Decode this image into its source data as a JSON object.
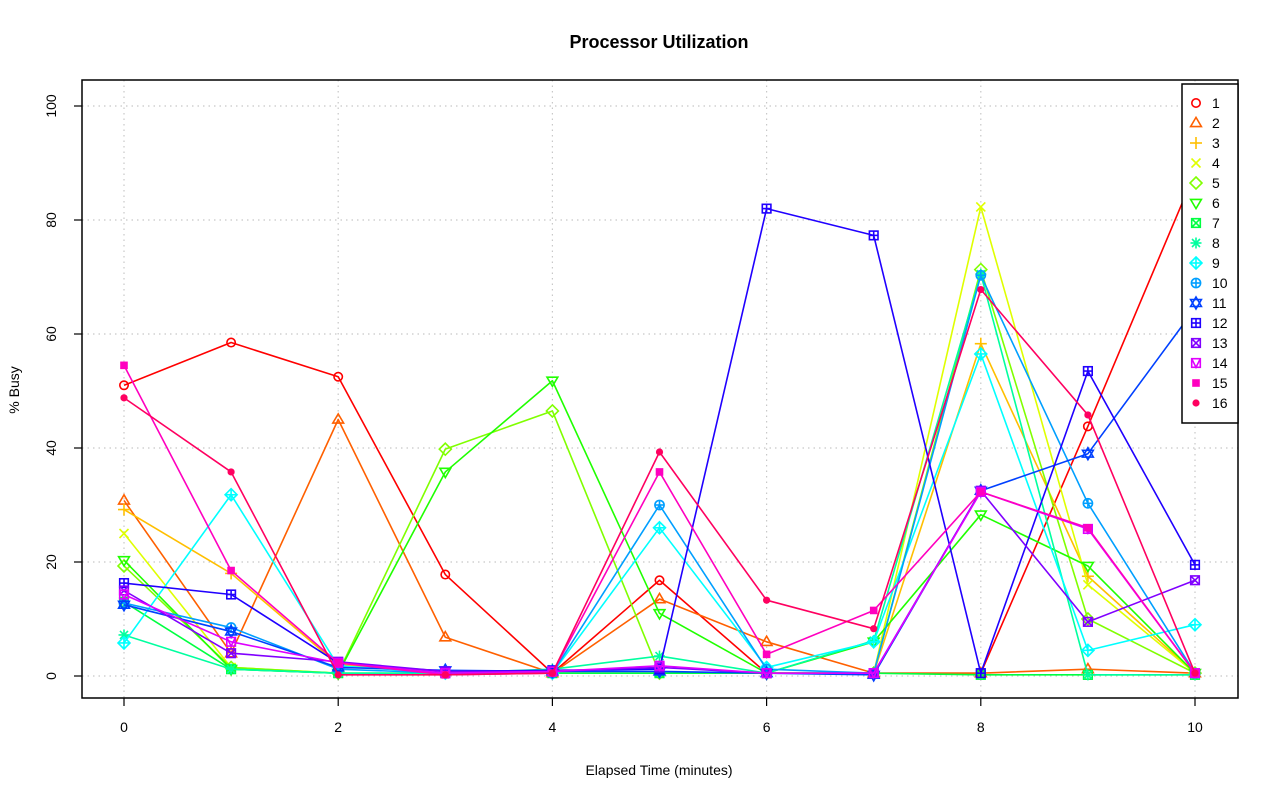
{
  "chart_data": {
    "type": "line",
    "title": "Processor Utilization",
    "xlabel": "Elapsed Time (minutes)",
    "ylabel": "% Busy",
    "xlim": [
      0,
      10
    ],
    "ylim": [
      0,
      100
    ],
    "x_ticks": [
      0,
      2,
      4,
      6,
      8,
      10
    ],
    "y_ticks": [
      0,
      20,
      40,
      60,
      80,
      100
    ],
    "grid": true,
    "legend_position": "top-right",
    "x": [
      0,
      1,
      2,
      3,
      4,
      5,
      6,
      7,
      8,
      9,
      10
    ],
    "series": [
      {
        "name": "1",
        "color": "#ff0000",
        "marker": "circle",
        "values": [
          51,
          58.5,
          52.5,
          17.8,
          0.5,
          16.8,
          0.5,
          0.5,
          0.5,
          43.8,
          88.3
        ]
      },
      {
        "name": "2",
        "color": "#ff6000",
        "marker": "triangle-up",
        "values": [
          30.8,
          4,
          45,
          6.8,
          0.5,
          13.5,
          6,
          0.5,
          0.5,
          1.2,
          0.5
        ]
      },
      {
        "name": "3",
        "color": "#ffbf00",
        "marker": "plus",
        "values": [
          29.2,
          18,
          2,
          0.5,
          0.5,
          0.5,
          0.5,
          0.5,
          58.3,
          17.5,
          0.5
        ]
      },
      {
        "name": "4",
        "color": "#dfff00",
        "marker": "cross",
        "values": [
          25,
          1.5,
          0.5,
          0.5,
          0.5,
          0.5,
          0.5,
          0.5,
          82.3,
          16,
          0.5
        ]
      },
      {
        "name": "5",
        "color": "#80ff00",
        "marker": "diamond",
        "values": [
          19.3,
          1.5,
          0.5,
          39.8,
          46.5,
          0.5,
          0.5,
          0.5,
          71.3,
          10,
          0.5
        ]
      },
      {
        "name": "6",
        "color": "#20ff00",
        "marker": "triangle-down",
        "values": [
          20.3,
          1.2,
          0.5,
          35.8,
          51.8,
          11,
          0.5,
          6,
          28.3,
          19.3,
          0.5
        ]
      },
      {
        "name": "7",
        "color": "#00ff40",
        "marker": "square-x",
        "values": [
          13,
          1.2,
          0.5,
          0.5,
          0.5,
          0.5,
          0.5,
          0.5,
          0.2,
          0.2,
          0.2
        ]
      },
      {
        "name": "8",
        "color": "#00ff9f",
        "marker": "asterisk",
        "values": [
          7.2,
          1.2,
          0.5,
          0.5,
          1.2,
          3.5,
          0.5,
          6.2,
          70.5,
          0.2,
          0.2
        ]
      },
      {
        "name": "9",
        "color": "#00ffff",
        "marker": "diamond-plus",
        "values": [
          5.8,
          31.8,
          1.8,
          0.5,
          0.5,
          26,
          1.5,
          6,
          56.5,
          4.5,
          9
        ]
      },
      {
        "name": "10",
        "color": "#009fff",
        "marker": "circle-plus",
        "values": [
          12.8,
          8.5,
          1.2,
          0.5,
          0.5,
          30,
          1.2,
          0.5,
          70.3,
          30.3,
          0.5
        ]
      },
      {
        "name": "11",
        "color": "#0040ff",
        "marker": "star-of-david",
        "values": [
          12.5,
          7.8,
          1.5,
          1,
          0.8,
          0.8,
          0.5,
          0.2,
          32.5,
          39,
          64.5
        ]
      },
      {
        "name": "12",
        "color": "#2000ff",
        "marker": "square-plus",
        "values": [
          16.3,
          14.3,
          2.3,
          0.8,
          1,
          1.2,
          82,
          77.3,
          0.5,
          53.5,
          19.5
        ]
      },
      {
        "name": "13",
        "color": "#8000ff",
        "marker": "square-cross",
        "values": [
          15,
          4,
          2.5,
          0.8,
          0.8,
          1.5,
          0.5,
          0.5,
          32.5,
          9.5,
          16.8
        ]
      },
      {
        "name": "14",
        "color": "#df00ff",
        "marker": "square-triangle",
        "values": [
          14.3,
          6,
          2.3,
          0.5,
          0.8,
          1.8,
          0.5,
          0.5,
          32.3,
          25.8,
          0.5
        ]
      },
      {
        "name": "15",
        "color": "#ff00bf",
        "marker": "square-filled",
        "values": [
          54.5,
          18.5,
          2.3,
          0.2,
          0.5,
          35.8,
          3.8,
          11.5,
          32.3,
          26,
          0.5
        ]
      },
      {
        "name": "16",
        "color": "#ff0060",
        "marker": "dot",
        "values": [
          48.8,
          35.8,
          0.2,
          0.2,
          0.5,
          39.3,
          13.3,
          8.3,
          67.8,
          45.8,
          0.5
        ]
      }
    ]
  }
}
